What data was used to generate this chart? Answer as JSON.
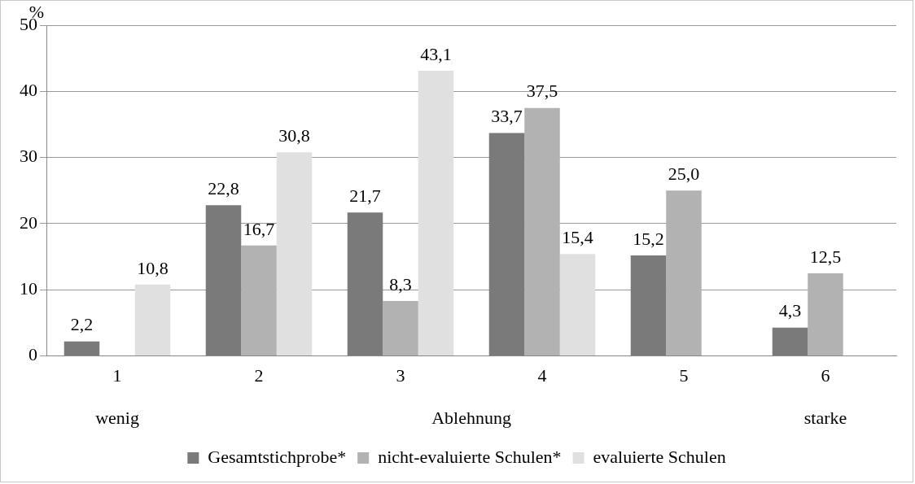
{
  "chart_data": {
    "type": "bar",
    "ylabel": "%",
    "categories": [
      "1",
      "2",
      "3",
      "4",
      "5",
      "6"
    ],
    "series": [
      {
        "name": "Gesamtstichprobe*",
        "color": "#7a7a7a",
        "values": [
          2.2,
          22.8,
          21.7,
          33.7,
          15.2,
          4.3
        ],
        "value_labels": [
          "2,2",
          "22,8",
          "21,7",
          "33,7",
          "15,2",
          "4,3"
        ]
      },
      {
        "name": "nicht-evaluierte Schulen*",
        "color": "#b2b2b2",
        "values": [
          null,
          16.7,
          8.3,
          37.5,
          25.0,
          12.5
        ],
        "value_labels": [
          null,
          "16,7",
          "8,3",
          "37,5",
          "25,0",
          "12,5"
        ]
      },
      {
        "name": "evaluierte Schulen",
        "color": "#e0e0e0",
        "values": [
          10.8,
          30.8,
          43.1,
          15.4,
          null,
          null
        ],
        "value_labels": [
          "10,8",
          "30,8",
          "43,1",
          "15,4",
          null,
          null
        ]
      }
    ],
    "ylim": [
      0,
      50
    ],
    "yticks": [
      0,
      10,
      20,
      30,
      40,
      50
    ],
    "grid": "y",
    "legend": "bottom",
    "annotations": [
      "wenig",
      "Ablehnung",
      "starke"
    ]
  }
}
